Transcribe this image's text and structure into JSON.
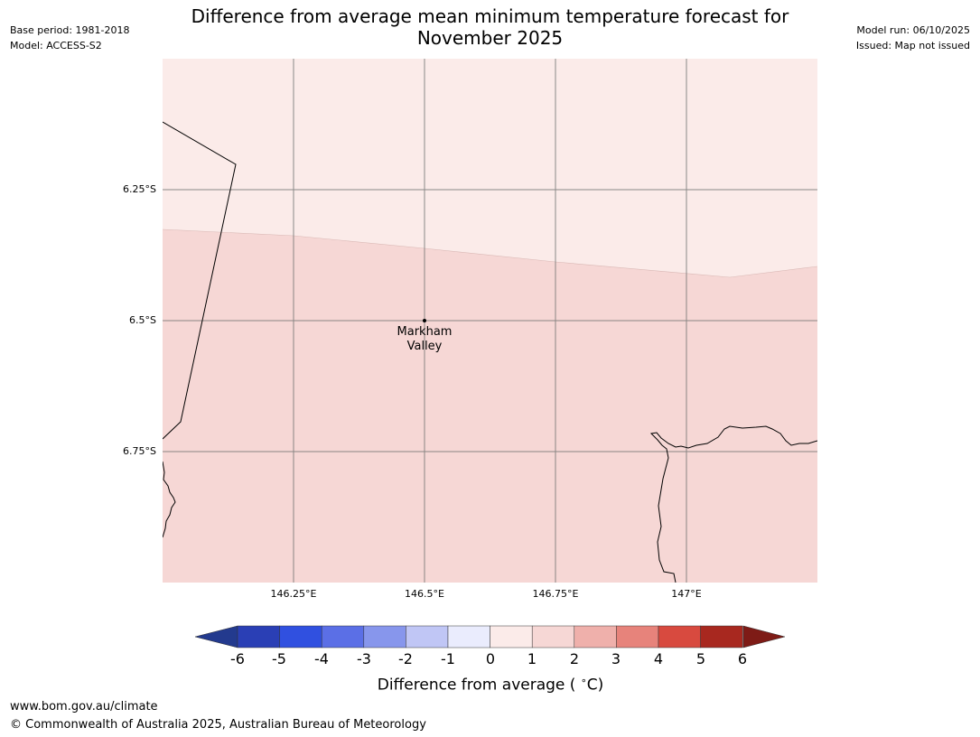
{
  "header": {
    "base_period": "Base period: 1981-2018",
    "model": "Model: ACCESS-S2",
    "model_run": "Model run: 06/10/2025",
    "issued": "Issued: Map not issued",
    "title_line1": "Difference from average mean minimum temperature forecast for",
    "title_line2": "November 2025"
  },
  "map": {
    "latitude_labels": [
      "6.25°S",
      "6.5°S",
      "6.75°S"
    ],
    "longitude_labels": [
      "146.25°E",
      "146.5°E",
      "146.75°E",
      "147°E"
    ],
    "place": {
      "line1": "Markham",
      "line2": "Valley"
    },
    "zone_colors": {
      "range_0_1": "#fbebe9",
      "range_1_2": "#f6d7d5"
    }
  },
  "legend": {
    "ticks": [
      "-6",
      "-5",
      "-4",
      "-3",
      "-2",
      "-1",
      "0",
      "1",
      "2",
      "3",
      "4",
      "5",
      "6"
    ],
    "title": "Difference from average ( ",
    "unit_deg": "∘",
    "unit_c": "C)",
    "colors": [
      "#233a8e",
      "#2a3fb5",
      "#3050e0",
      "#5b6fe6",
      "#8796ec",
      "#c0c6f5",
      "#eaecfd",
      "#fbebe9",
      "#f6d7d5",
      "#efb0ab",
      "#e7837b",
      "#d84a3f",
      "#a8281f",
      "#7e1b16"
    ]
  },
  "footer": {
    "url": "www.bom.gov.au/climate",
    "copyright": "© Commonwealth of Australia 2025, Australian Bureau of Meteorology"
  }
}
